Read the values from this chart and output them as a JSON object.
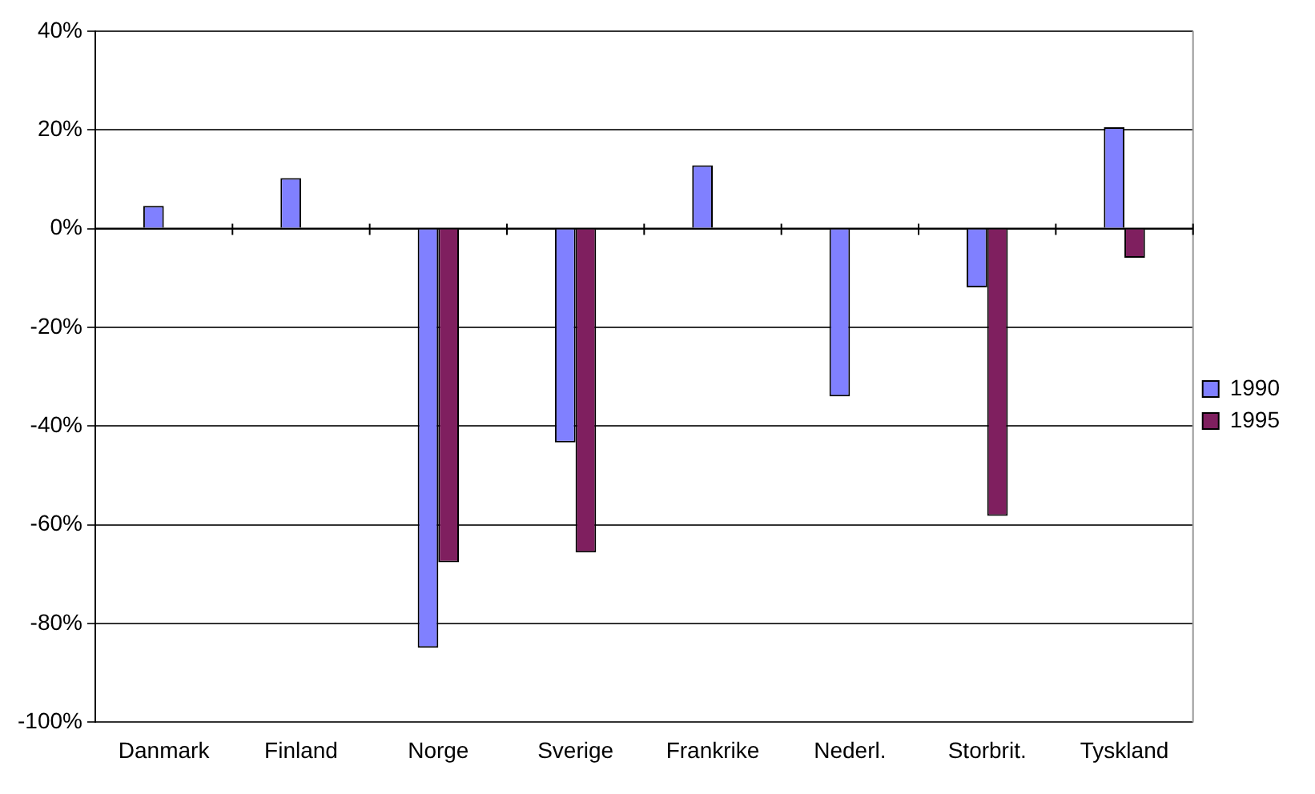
{
  "chart_data": {
    "type": "bar",
    "categories": [
      "Danmark",
      "Finland",
      "Norge",
      "Sverige",
      "Frankrike",
      "Nederl.",
      "Storbrit.",
      "Tyskland"
    ],
    "series": [
      {
        "name": "1990",
        "color": "#8080ff",
        "values": [
          4.6,
          10.2,
          -84.9,
          -43.3,
          12.8,
          -34,
          -11.9,
          20.5
        ]
      },
      {
        "name": "1995",
        "color": "#7f1f5f",
        "values": [
          null,
          null,
          -67.6,
          -65.6,
          null,
          null,
          -58.2,
          -5.9
        ]
      }
    ],
    "ylim": [
      -100,
      40
    ],
    "yticks": [
      {
        "value": -100,
        "label": "-100%"
      },
      {
        "value": -80,
        "label": "-80%"
      },
      {
        "value": -60,
        "label": "-60%"
      },
      {
        "value": -40,
        "label": "-40%"
      },
      {
        "value": -20,
        "label": "-20%"
      },
      {
        "value": 0,
        "label": "0%"
      },
      {
        "value": 20,
        "label": "20%"
      },
      {
        "value": 40,
        "label": "40%"
      }
    ],
    "grid": "y",
    "legend": "right"
  }
}
